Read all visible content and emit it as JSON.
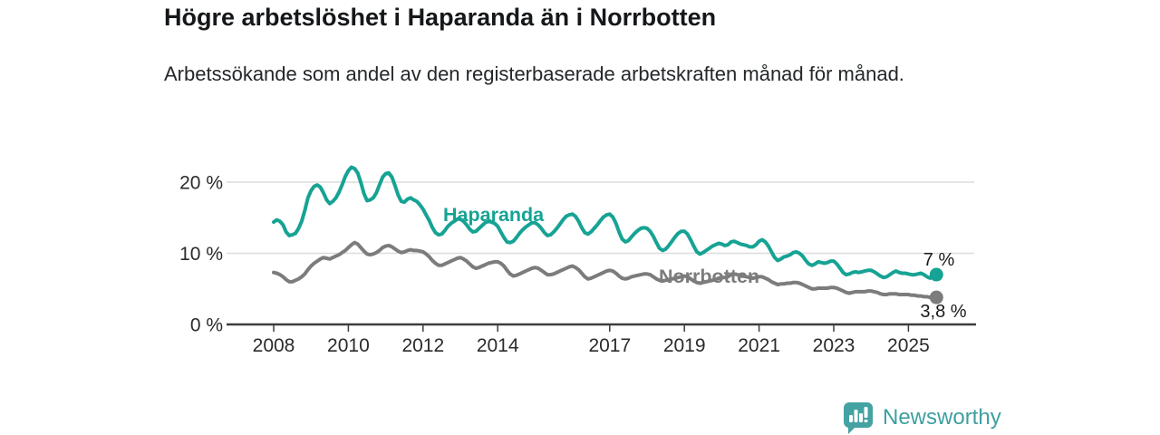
{
  "header": {
    "title": "Högre arbetslöshet i Haparanda än i Norrbotten",
    "subtitle": "Arbetssökande som andel av den registerbaserade arbetskraften månad för månad."
  },
  "footer": {
    "brand": "Newsworthy",
    "logo_icon": "bar-chart-speech-bubble-icon"
  },
  "colors": {
    "haparanda": "#16a394",
    "norrbotten": "#7c7c7c",
    "axis": "#3d3d3d",
    "gridline": "#dcdcdc",
    "tick_text": "#2b2b2b",
    "annotation_text": "#1a1a1a",
    "brand": "#44a3a2"
  },
  "chart_data": {
    "type": "line",
    "title": "Högre arbetslöshet i Haparanda än i Norrbotten",
    "subtitle": "Arbetssökande som andel av den registerbaserade arbetskraften månad för månad.",
    "unit": "%",
    "x_start_year": 2008,
    "x_resolution": "monthly",
    "x_end": "2025-10",
    "ylim": [
      0,
      23
    ],
    "grid": "horizontal",
    "y_ticks": [
      {
        "value": 0,
        "label": "0 %",
        "gridline": false
      },
      {
        "value": 10,
        "label": "10 %",
        "gridline": true
      },
      {
        "value": 20,
        "label": "20 %",
        "gridline": true
      }
    ],
    "x_ticks": [
      {
        "year": 2008,
        "label": "2008"
      },
      {
        "year": 2010,
        "label": "2010"
      },
      {
        "year": 2012,
        "label": "2012"
      },
      {
        "year": 2014,
        "label": "2014"
      },
      {
        "year": 2017,
        "label": "2017"
      },
      {
        "year": 2019,
        "label": "2019"
      },
      {
        "year": 2021,
        "label": "2021"
      },
      {
        "year": 2023,
        "label": "2023"
      },
      {
        "year": 2025,
        "label": "2025"
      }
    ],
    "series": [
      {
        "name": "Haparanda",
        "color_key": "haparanda",
        "end_label": "7 %",
        "values": [
          14.4,
          14.7,
          14.5,
          14.0,
          13.0,
          12.5,
          12.6,
          12.8,
          13.5,
          14.5,
          16.0,
          17.8,
          18.8,
          19.4,
          19.6,
          19.3,
          18.5,
          17.5,
          17.0,
          17.3,
          17.8,
          18.6,
          19.6,
          20.8,
          21.6,
          22.1,
          21.9,
          21.3,
          20.0,
          18.4,
          17.4,
          17.5,
          17.8,
          18.5,
          19.6,
          20.7,
          21.2,
          21.3,
          20.7,
          19.5,
          18.2,
          17.3,
          17.2,
          17.6,
          17.8,
          17.5,
          17.3,
          16.8,
          16.2,
          15.4,
          14.6,
          13.6,
          12.9,
          12.6,
          12.7,
          13.2,
          13.8,
          14.2,
          14.5,
          14.8,
          14.8,
          14.5,
          14.0,
          13.4,
          13.0,
          13.1,
          13.5,
          13.9,
          14.3,
          14.5,
          14.4,
          14.2,
          13.8,
          13.0,
          12.2,
          11.6,
          11.5,
          11.7,
          12.2,
          12.8,
          13.3,
          13.7,
          14.0,
          14.3,
          14.3,
          14.0,
          13.5,
          12.9,
          12.5,
          12.6,
          13.0,
          13.5,
          14.1,
          14.7,
          15.2,
          15.4,
          15.5,
          15.2,
          14.5,
          13.6,
          12.9,
          12.7,
          13.0,
          13.5,
          14.0,
          14.6,
          15.1,
          15.4,
          15.5,
          15.1,
          14.2,
          13.0,
          12.0,
          11.6,
          11.8,
          12.3,
          12.8,
          13.2,
          13.5,
          13.6,
          13.5,
          13.1,
          12.4,
          11.5,
          10.7,
          10.4,
          10.6,
          11.1,
          11.7,
          12.3,
          12.8,
          13.1,
          13.1,
          12.7,
          11.9,
          11.0,
          10.2,
          9.9,
          10.1,
          10.4,
          10.7,
          11.0,
          11.2,
          11.4,
          11.3,
          11.1,
          11.2,
          11.6,
          11.7,
          11.5,
          11.3,
          11.2,
          11.1,
          10.9,
          10.9,
          11.2,
          11.7,
          11.9,
          11.6,
          11.0,
          10.2,
          9.4,
          9.0,
          9.2,
          9.5,
          9.6,
          9.8,
          10.1,
          10.2,
          10.0,
          9.6,
          9.0,
          8.5,
          8.3,
          8.5,
          8.8,
          8.7,
          8.6,
          8.7,
          8.9,
          8.9,
          8.5,
          7.9,
          7.3,
          7.0,
          7.1,
          7.3,
          7.4,
          7.3,
          7.4,
          7.5,
          7.6,
          7.6,
          7.4,
          7.1,
          6.8,
          6.6,
          6.7,
          7.0,
          7.3,
          7.5,
          7.3,
          7.2,
          7.2,
          7.1,
          7.0,
          7.0,
          7.1,
          7.2,
          7.0,
          6.7,
          6.5,
          6.8,
          7.0
        ]
      },
      {
        "name": "Norrbotten",
        "color_key": "norrbotten",
        "end_label": "3,8 %",
        "values": [
          7.3,
          7.2,
          7.0,
          6.7,
          6.3,
          6.0,
          6.0,
          6.2,
          6.4,
          6.7,
          7.1,
          7.7,
          8.2,
          8.6,
          8.9,
          9.2,
          9.4,
          9.3,
          9.2,
          9.4,
          9.6,
          9.8,
          10.1,
          10.4,
          10.8,
          11.2,
          11.5,
          11.3,
          10.8,
          10.3,
          9.9,
          9.8,
          9.9,
          10.1,
          10.4,
          10.8,
          11.0,
          11.1,
          10.9,
          10.6,
          10.3,
          10.1,
          10.2,
          10.4,
          10.5,
          10.4,
          10.4,
          10.3,
          10.2,
          9.9,
          9.5,
          9.0,
          8.6,
          8.3,
          8.3,
          8.5,
          8.7,
          8.9,
          9.1,
          9.3,
          9.4,
          9.2,
          8.9,
          8.5,
          8.1,
          7.9,
          8.0,
          8.2,
          8.4,
          8.6,
          8.7,
          8.8,
          8.8,
          8.6,
          8.2,
          7.6,
          7.1,
          6.8,
          6.9,
          7.1,
          7.3,
          7.5,
          7.7,
          7.9,
          8.0,
          7.9,
          7.6,
          7.3,
          7.0,
          7.0,
          7.1,
          7.3,
          7.5,
          7.7,
          7.9,
          8.1,
          8.2,
          8.0,
          7.7,
          7.2,
          6.7,
          6.4,
          6.5,
          6.7,
          6.9,
          7.1,
          7.3,
          7.5,
          7.6,
          7.5,
          7.2,
          6.8,
          6.5,
          6.4,
          6.5,
          6.7,
          6.8,
          6.9,
          7.0,
          7.1,
          7.1,
          7.0,
          6.7,
          6.4,
          6.2,
          6.1,
          6.2,
          6.3,
          6.4,
          6.5,
          6.6,
          6.7,
          6.8,
          6.7,
          6.4,
          6.1,
          5.9,
          5.8,
          5.9,
          6.0,
          6.1,
          6.2,
          6.3,
          6.5,
          6.6,
          6.6,
          6.7,
          7.0,
          7.1,
          7.0,
          6.9,
          6.8,
          6.7,
          6.6,
          6.5,
          6.6,
          6.7,
          6.7,
          6.5,
          6.3,
          6.0,
          5.8,
          5.6,
          5.7,
          5.7,
          5.8,
          5.8,
          5.9,
          5.9,
          5.8,
          5.6,
          5.4,
          5.2,
          5.0,
          5.0,
          5.1,
          5.1,
          5.1,
          5.1,
          5.2,
          5.2,
          5.1,
          4.9,
          4.7,
          4.5,
          4.4,
          4.5,
          4.6,
          4.6,
          4.6,
          4.6,
          4.7,
          4.7,
          4.6,
          4.5,
          4.3,
          4.2,
          4.2,
          4.3,
          4.3,
          4.3,
          4.2,
          4.2,
          4.2,
          4.2,
          4.1,
          4.1,
          4.0,
          4.0,
          3.9,
          3.9,
          3.8,
          3.8,
          3.8
        ]
      }
    ]
  }
}
